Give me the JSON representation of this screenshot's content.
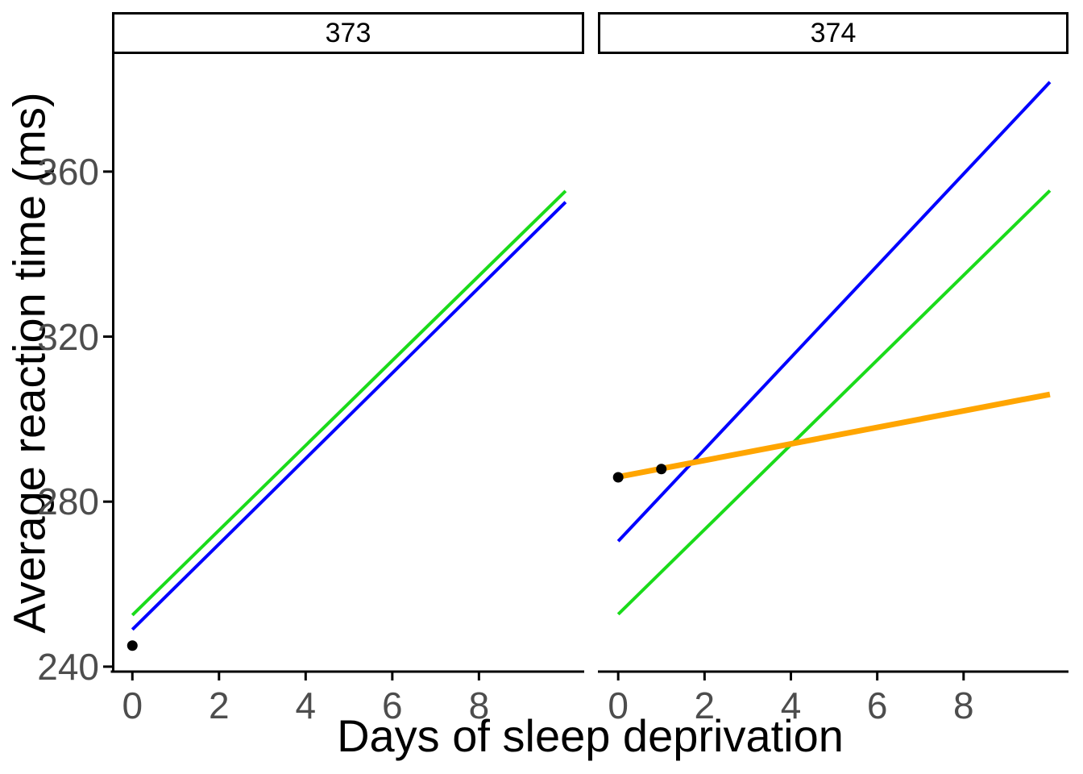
{
  "figure": {
    "x_axis_title": "Days of sleep deprivation",
    "y_axis_title": "Average reaction time (ms)",
    "background_color": "#FFFFFF",
    "axis_line_color": "#000000",
    "tick_label_color": "#4D4D4D",
    "strip_border_color": "#000000",
    "strip_fill_color": "#FFFFFF",
    "strip_text_color": "#000000"
  },
  "chart_data": {
    "type": "line",
    "title": "",
    "xlabel": "Days of sleep deprivation",
    "ylabel": "Average reaction time (ms)",
    "x_ticks": [
      0,
      2,
      4,
      6,
      8
    ],
    "y_ticks": [
      240,
      280,
      320,
      360
    ],
    "xlim": [
      -0.47,
      10.43
    ],
    "ylim": [
      238.8,
      388.5
    ],
    "grid": "off",
    "legend": "none",
    "point_color": "#000000",
    "point_radius": 6.5,
    "facets": [
      {
        "label": "373",
        "lines": [
          {
            "series": "blue-line",
            "color": "#0000FF",
            "stroke_width": 4,
            "x": [
              0,
              10
            ],
            "y": [
              249.0,
              352.6
            ]
          },
          {
            "series": "green-line",
            "color": "#1ADB1A",
            "stroke_width": 4,
            "x": [
              0,
              10
            ],
            "y": [
              252.5,
              355.3
            ]
          }
        ],
        "points": [
          {
            "x": 0,
            "y": 245.1
          }
        ]
      },
      {
        "label": "374",
        "lines": [
          {
            "series": "blue-line",
            "color": "#0000FF",
            "stroke_width": 4,
            "x": [
              0,
              10
            ],
            "y": [
              270.4,
              381.7
            ]
          },
          {
            "series": "green-line",
            "color": "#1ADB1A",
            "stroke_width": 4,
            "x": [
              0,
              10
            ],
            "y": [
              252.7,
              355.4
            ]
          },
          {
            "series": "orange-line",
            "color": "#FFA500",
            "stroke_width": 7,
            "x": [
              0,
              10
            ],
            "y": [
              286.0,
              306.0
            ]
          }
        ],
        "points": [
          {
            "x": 0,
            "y": 285.9
          },
          {
            "x": 1,
            "y": 287.9
          }
        ]
      }
    ]
  }
}
